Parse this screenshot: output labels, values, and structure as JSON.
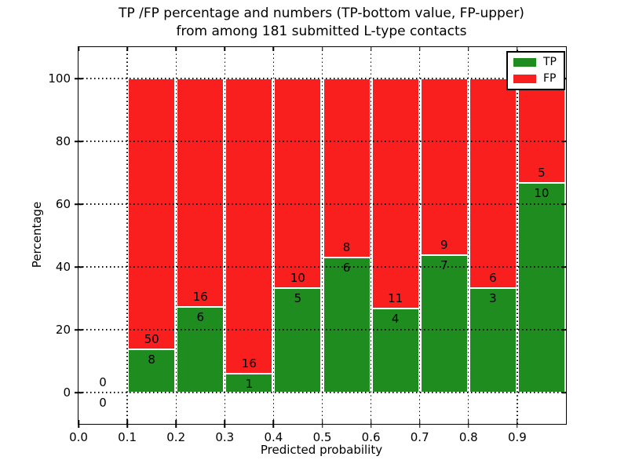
{
  "chart_data": {
    "type": "bar",
    "variant": "stacked-percentage",
    "title_line1": "TP /FP percentage and numbers (TP-bottom value, FP-upper)",
    "title_line2": "from among 181 submitted L-type contacts",
    "xlabel": "Predicted probability",
    "ylabel": "Percentage",
    "xlim": [
      0.0,
      1.0
    ],
    "ylim": [
      -10,
      110
    ],
    "xticks": [
      "0.0",
      "0.1",
      "0.2",
      "0.3",
      "0.4",
      "0.5",
      "0.6",
      "0.7",
      "0.8",
      "0.9"
    ],
    "yticks": [
      "0",
      "20",
      "40",
      "60",
      "80",
      "100"
    ],
    "grid": "dotted-black",
    "legend_position": "upper-right",
    "bin_width": 0.1,
    "bins": [
      {
        "x0": 0.0,
        "range": "0.0-0.1",
        "tp": 0,
        "fp": 0,
        "tp_pct": 0.0
      },
      {
        "x0": 0.1,
        "range": "0.1-0.2",
        "tp": 8,
        "fp": 50,
        "tp_pct": 13.8
      },
      {
        "x0": 0.2,
        "range": "0.2-0.3",
        "tp": 6,
        "fp": 16,
        "tp_pct": 27.3
      },
      {
        "x0": 0.3,
        "range": "0.3-0.4",
        "tp": 1,
        "fp": 16,
        "tp_pct": 5.9
      },
      {
        "x0": 0.4,
        "range": "0.4-0.5",
        "tp": 5,
        "fp": 10,
        "tp_pct": 33.3
      },
      {
        "x0": 0.5,
        "range": "0.5-0.6",
        "tp": 6,
        "fp": 8,
        "tp_pct": 42.9
      },
      {
        "x0": 0.6,
        "range": "0.6-0.7",
        "tp": 4,
        "fp": 11,
        "tp_pct": 26.7
      },
      {
        "x0": 0.7,
        "range": "0.7-0.8",
        "tp": 7,
        "fp": 9,
        "tp_pct": 43.8
      },
      {
        "x0": 0.8,
        "range": "0.8-0.9",
        "tp": 3,
        "fp": 6,
        "tp_pct": 33.3
      },
      {
        "x0": 0.9,
        "range": "0.9-1.0",
        "tp": 10,
        "fp": 5,
        "tp_pct": 66.7
      }
    ],
    "series": [
      {
        "name": "TP",
        "color": "#1e8c1e"
      },
      {
        "name": "FP",
        "color": "#fa1f1f"
      }
    ]
  }
}
